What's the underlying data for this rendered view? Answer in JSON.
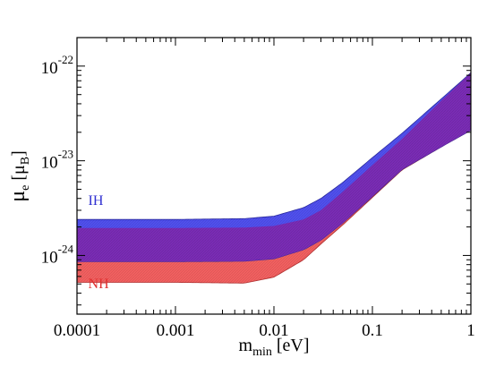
{
  "chart_data": {
    "type": "area",
    "xscale": "log",
    "yscale": "log",
    "xlim": [
      0.0001,
      1
    ],
    "ylim": [
      2.4e-25,
      2e-22
    ],
    "grid": false,
    "x_tick_values": [
      0.0001,
      0.001,
      0.01,
      0.1,
      1
    ],
    "x_tick_labels": [
      "0.0001",
      "0.001",
      "0.01",
      "0.1",
      "1"
    ],
    "y_tick_values": [
      1e-24,
      1e-23,
      1e-22
    ],
    "y_tick_mantissa": [
      "10",
      "10",
      "10"
    ],
    "y_tick_exponents": [
      "-24",
      "-23",
      "-22"
    ],
    "xlabel": {
      "main": "m",
      "sub": "min",
      "rest": " [eV]"
    },
    "ylabel": {
      "main": "μ",
      "sub1": "e",
      "mid": " [μ",
      "sub2": "B",
      "end": "]"
    },
    "series": [
      {
        "name": "NH",
        "color": "#f26060",
        "x": [
          0.0001,
          0.001,
          0.005,
          0.01,
          0.02,
          0.03,
          0.05,
          0.1,
          0.2,
          0.5,
          1
        ],
        "lower": [
          5.2e-25,
          5.2e-25,
          5.1e-25,
          5.9e-25,
          9e-25,
          1.32e-24,
          2.1e-24,
          4.1e-24,
          8e-24,
          1.4e-23,
          2.1e-23
        ],
        "upper": [
          1.95e-24,
          1.95e-24,
          1.97e-24,
          2.05e-24,
          2.4e-24,
          3e-24,
          4.7e-24,
          9e-24,
          1.7e-23,
          4.3e-23,
          8.5e-23
        ]
      },
      {
        "name": "IH",
        "color": "#5050ee",
        "x": [
          0.0001,
          0.001,
          0.005,
          0.01,
          0.02,
          0.03,
          0.05,
          0.1,
          0.2,
          0.5,
          1
        ],
        "lower": [
          8.6e-25,
          8.6e-25,
          8.7e-25,
          9.2e-25,
          1.15e-24,
          1.45e-24,
          2.2e-24,
          4.2e-24,
          8.1e-24,
          1.4e-23,
          2.1e-23
        ],
        "upper": [
          2.4e-24,
          2.4e-24,
          2.45e-24,
          2.6e-24,
          3.2e-24,
          4e-24,
          5.9e-24,
          1.08e-23,
          1.95e-23,
          4.5e-23,
          8.5e-23
        ]
      }
    ],
    "overlap_color": "#7a2cb5",
    "annotations": [
      {
        "text": "IH",
        "color": "#2f2fd0",
        "x": 0.00013,
        "y": 3.4e-24
      },
      {
        "text": "NH",
        "color": "#e03030",
        "x": 0.00013,
        "y": 4.5e-25
      }
    ]
  }
}
